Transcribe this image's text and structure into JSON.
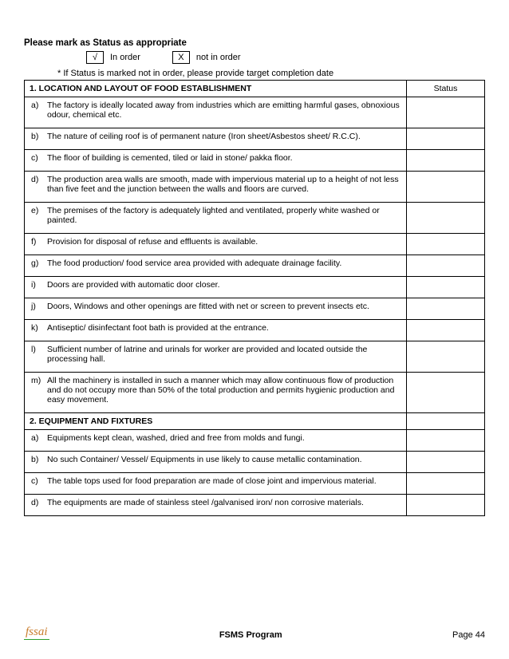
{
  "instruction": "Please mark as Status as appropriate",
  "legend": {
    "box1": "√",
    "label1": "In order",
    "box2": "X",
    "label2": "not in order"
  },
  "note": "* If Status is marked not in order, please provide target completion date",
  "status_header": "Status",
  "sections": [
    {
      "title": "1. LOCATION AND LAYOUT OF FOOD ESTABLISHMENT",
      "items": [
        {
          "m": "a)",
          "t": "The factory is ideally located away from industries which are emitting harmful gases, obnoxious odour, chemical etc."
        },
        {
          "m": "b)",
          "t": "The nature of ceiling roof is of permanent nature (Iron sheet/Asbestos sheet/ R.C.C)."
        },
        {
          "m": "c)",
          "t": "The floor of building is cemented, tiled or laid in stone/ pakka floor."
        },
        {
          "m": "d)",
          "t": "The production area walls are smooth, made with impervious material up to a height of not less than five feet and the junction between the walls and floors are curved."
        },
        {
          "m": "e)",
          "t": "The premises of the factory is adequately lighted and ventilated, properly white washed or painted."
        },
        {
          "m": "f)",
          "t": "Provision for disposal of refuse and effluents is available."
        },
        {
          "m": "g)",
          "t": "The food production/ food service area provided with adequate drainage facility."
        },
        {
          "m": "i)",
          "t": "Doors are provided with automatic door closer."
        },
        {
          "m": "j)",
          "t": "Doors, Windows and other openings are fitted with net or screen to prevent insects etc."
        },
        {
          "m": "k)",
          "t": "Antiseptic/ disinfectant foot bath is provided at the entrance."
        },
        {
          "m": "l)",
          "t": "Sufficient number of latrine and urinals for worker are provided and located outside the processing hall."
        },
        {
          "m": "m)",
          "t": "All the machinery is installed in such a manner which may allow continuous flow of production and do not occupy more than 50% of the total production and permits hygienic production and easy movement."
        }
      ]
    },
    {
      "title": "2. EQUIPMENT AND FIXTURES",
      "items": [
        {
          "m": "a)",
          "t": "Equipments kept clean, washed, dried and free from molds and fungi."
        },
        {
          "m": "b)",
          "t": "No such Container/ Vessel/ Equipments in use likely to cause metallic contamination."
        },
        {
          "m": "c)",
          "t": "The table tops used for food preparation are made of close joint and impervious material."
        },
        {
          "m": "d)",
          "t": "The equipments are made of stainless steel /galvanised iron/ non corrosive materials."
        }
      ]
    }
  ],
  "footer": {
    "logo": "fssai",
    "program": "FSMS Program",
    "page": "Page 44"
  }
}
